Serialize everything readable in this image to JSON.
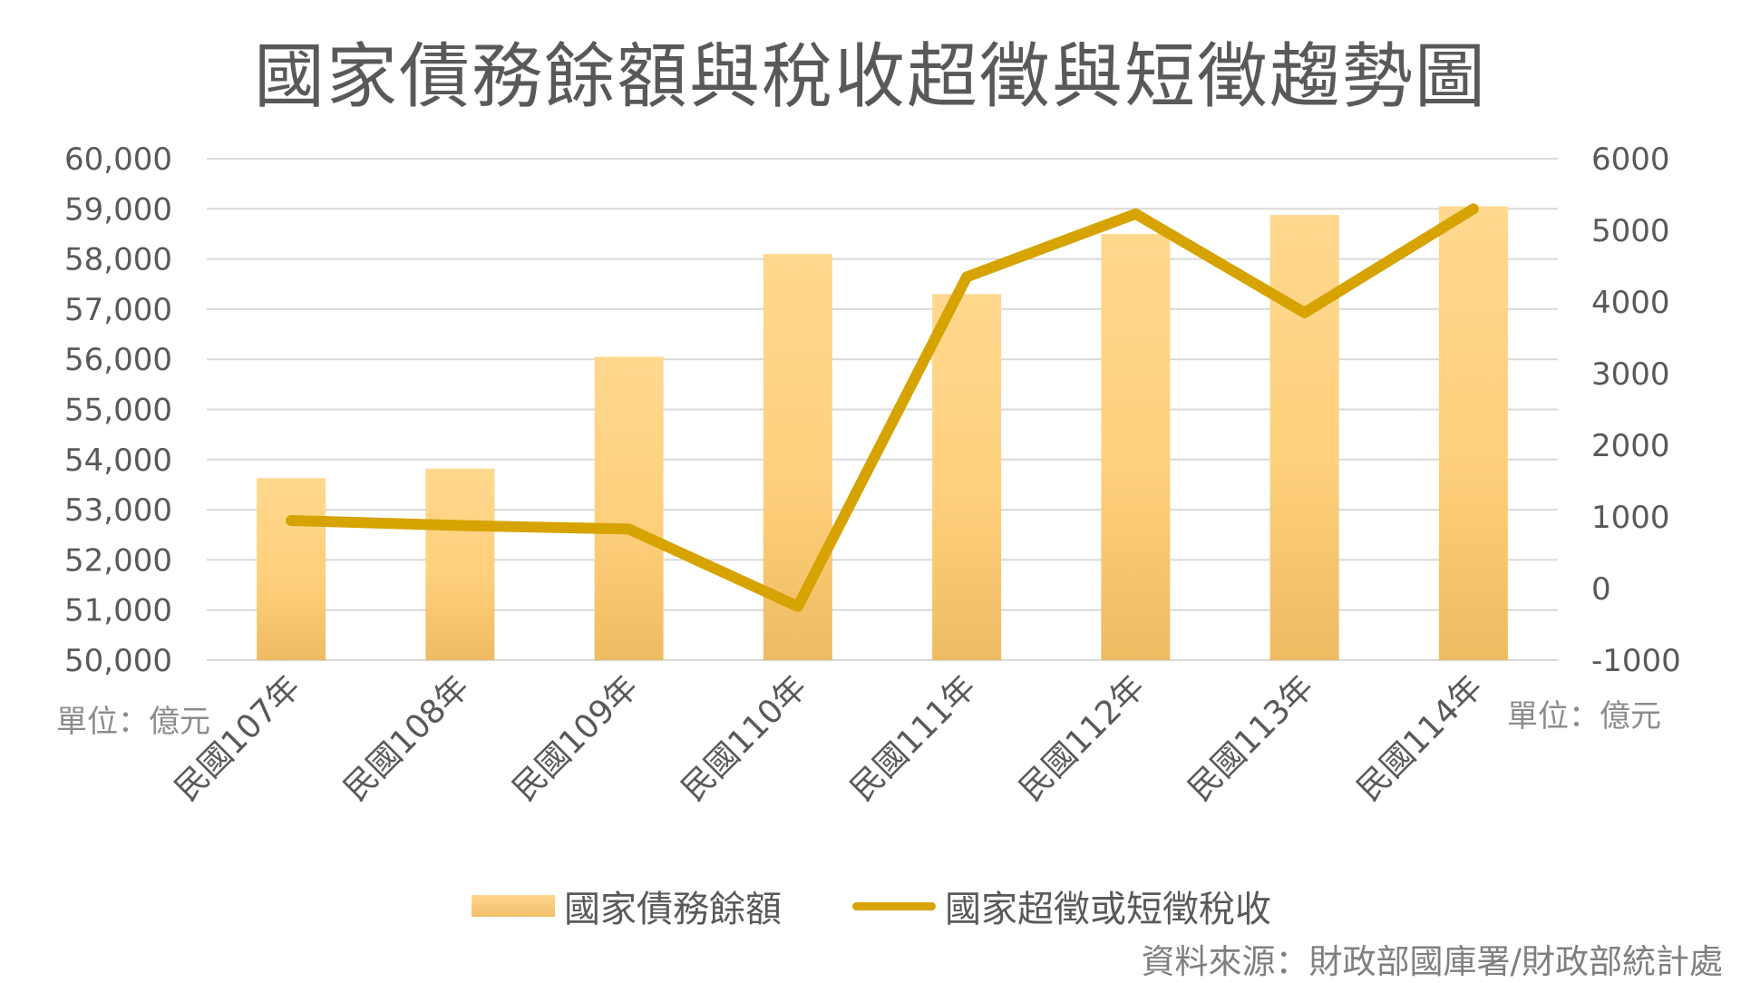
{
  "chart_data": {
    "type": "bar+line",
    "title": "國家債務餘額與稅收超徵與短徵趨勢圖",
    "categories": [
      "民國107年",
      "民國108年",
      "民國109年",
      "民國110年",
      "民國111年",
      "民國112年",
      "民國113年",
      "民國114年"
    ],
    "series": [
      {
        "name": "國家債務餘額",
        "type": "bar",
        "axis": "left",
        "color": "#f7c972",
        "values": [
          53630,
          53820,
          56050,
          58100,
          57300,
          58500,
          58880,
          59050
        ]
      },
      {
        "name": "國家超徵或短徵稅收",
        "type": "line",
        "axis": "right",
        "color": "#d6a300",
        "values": [
          950,
          880,
          830,
          -250,
          4350,
          5230,
          3850,
          5300
        ]
      }
    ],
    "y_left": {
      "min": 50000,
      "max": 60000,
      "step": 1000,
      "ticks": [
        "50,000",
        "51,000",
        "52,000",
        "53,000",
        "54,000",
        "55,000",
        "56,000",
        "57,000",
        "58,000",
        "59,000",
        "60,000"
      ],
      "unit": "單位：億元"
    },
    "y_right": {
      "min": -1000,
      "max": 6000,
      "step": 1000,
      "ticks": [
        "-1000",
        "0",
        "1000",
        "2000",
        "3000",
        "4000",
        "5000",
        "6000"
      ],
      "unit": "單位：億元"
    },
    "grid": true,
    "legend_position": "bottom"
  },
  "source": "資料來源：財政部國庫署/財政部統計處"
}
